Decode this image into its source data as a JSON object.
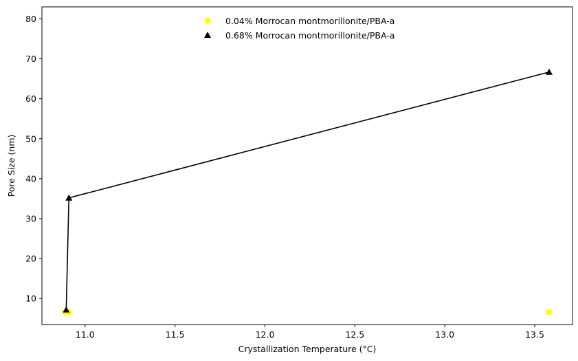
{
  "chart_data": {
    "type": "scatter",
    "title": "",
    "xlabel": "Crystallization Temperature (°C)",
    "ylabel": "Pore Size (nm)",
    "xlim": [
      10.76,
      13.71
    ],
    "ylim": [
      3.5,
      83
    ],
    "x_ticks": [
      11.0,
      11.5,
      12.0,
      12.5,
      13.0,
      13.5
    ],
    "x_tick_labels": [
      "11.0",
      "11.5",
      "12.0",
      "12.5",
      "13.0",
      "13.5"
    ],
    "y_ticks": [
      10,
      20,
      30,
      40,
      50,
      60,
      70,
      80
    ],
    "y_tick_labels": [
      "10",
      "20",
      "30",
      "40",
      "50",
      "60",
      "70",
      "80"
    ],
    "grid": false,
    "legend_position": "top-center",
    "series": [
      {
        "name": "0.04% Morrocan montmorillonite/PBA-a",
        "marker": "circle",
        "color": "#ffff00",
        "line": false,
        "points": [
          {
            "x": 10.89,
            "y": 6.6
          },
          {
            "x": 10.91,
            "y": 6.6
          },
          {
            "x": 13.58,
            "y": 6.6
          }
        ]
      },
      {
        "name": "0.68% Morrocan montmorillonite/PBA-a",
        "marker": "triangle",
        "color": "#000000",
        "line": true,
        "points": [
          {
            "x": 10.895,
            "y": 7.2
          },
          {
            "x": 10.91,
            "y": 35.2
          },
          {
            "x": 13.58,
            "y": 66.7
          }
        ]
      }
    ]
  }
}
